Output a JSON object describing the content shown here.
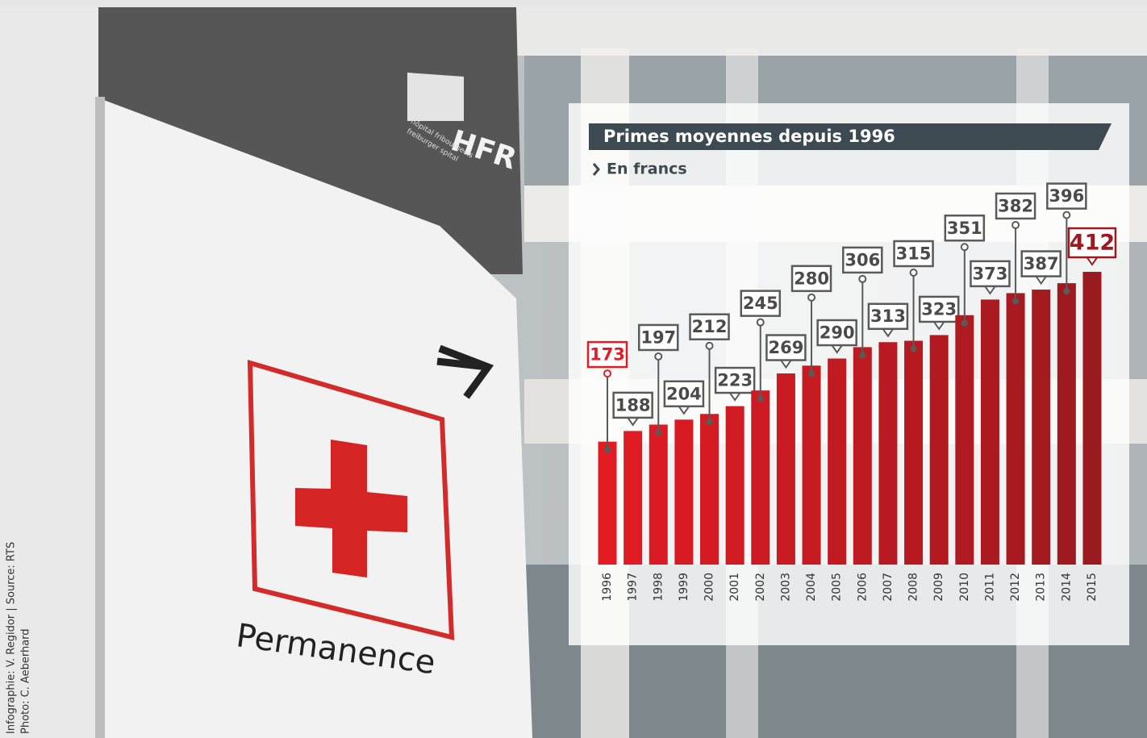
{
  "chart_data": {
    "type": "bar",
    "title": "Primes moyennes depuis 1996",
    "subtitle": "En francs",
    "categories": [
      "1996",
      "1997",
      "1998",
      "1999",
      "2000",
      "2001",
      "2002",
      "2003",
      "2004",
      "2005",
      "2006",
      "2007",
      "2008",
      "2009",
      "2010",
      "2011",
      "2012",
      "2013",
      "2014",
      "2015"
    ],
    "values": [
      173,
      188,
      197,
      204,
      212,
      223,
      245,
      269,
      280,
      290,
      306,
      313,
      315,
      323,
      351,
      373,
      382,
      387,
      396,
      412
    ],
    "colors": [
      "#e31b23",
      "#9b1a1f"
    ]
  },
  "photo": {
    "sign_text": "Permanence",
    "logo": "HFR",
    "logo_sub": [
      "hôpital fribourgeois",
      "freiburger spital"
    ]
  },
  "credits": [
    "Infographie: V. Regidor | Source: RTS",
    "Photo: C. Aeberhard"
  ]
}
